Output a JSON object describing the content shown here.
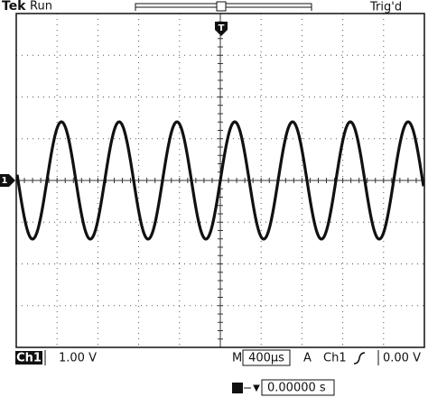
{
  "header": {
    "brand": "Tek",
    "status": "Run",
    "trigger_status": "Trig'd"
  },
  "markers": {
    "trigger": "T",
    "channel": "1"
  },
  "footer": {
    "channel": "Ch1",
    "scale": "1.00 V",
    "timebase_label": "M",
    "timebase": "400µs",
    "trigger_mode": "A",
    "trigger_source": "Ch1",
    "trigger_level": "0.00 V",
    "position": "0.00000 s"
  }
}
